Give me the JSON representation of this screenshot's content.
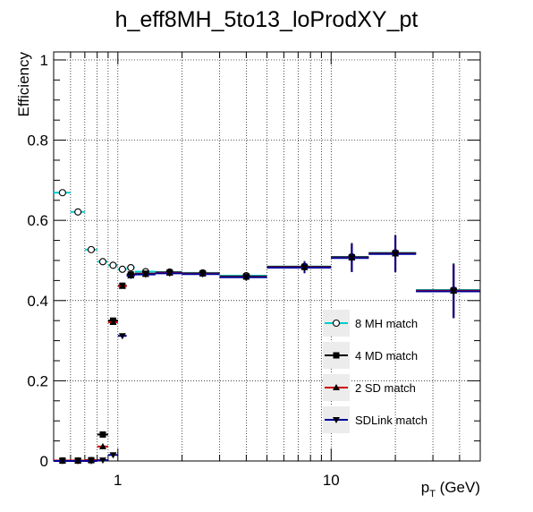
{
  "chart_data": {
    "type": "scatter",
    "title": "h_eff8MH_5to13_loProdXY_pt",
    "xlabel_main": "p",
    "xlabel_sub": "T",
    "xlabel_unit": " (GeV)",
    "ylabel": "Efficiency",
    "x_scale": "log",
    "xlim": [
      0.5,
      50
    ],
    "ylim": [
      0,
      1.02
    ],
    "x_ticklabels": [
      {
        "value": 1,
        "label": "1"
      },
      {
        "value": 10,
        "label": "10"
      }
    ],
    "y_ticklabels": [
      {
        "value": 0,
        "label": "0"
      },
      {
        "value": 0.2,
        "label": "0.2"
      },
      {
        "value": 0.4,
        "label": "0.4"
      },
      {
        "value": 0.6,
        "label": "0.6"
      },
      {
        "value": 0.8,
        "label": "0.8"
      },
      {
        "value": 1,
        "label": "1"
      }
    ],
    "grid": true,
    "legend_position": "right-center",
    "series": [
      {
        "name": "8 MH match",
        "color": "#00cccc",
        "marker": "open-circle",
        "points": [
          {
            "x": 0.55,
            "xerr": 0.05,
            "y": 0.669,
            "yerr": 0.004
          },
          {
            "x": 0.65,
            "xerr": 0.05,
            "y": 0.621,
            "yerr": 0.004
          },
          {
            "x": 0.75,
            "xerr": 0.05,
            "y": 0.527,
            "yerr": 0.004
          },
          {
            "x": 0.85,
            "xerr": 0.05,
            "y": 0.497,
            "yerr": 0.004
          },
          {
            "x": 0.95,
            "xerr": 0.05,
            "y": 0.488,
            "yerr": 0.004
          },
          {
            "x": 1.05,
            "xerr": 0.05,
            "y": 0.478,
            "yerr": 0.004
          },
          {
            "x": 1.15,
            "xerr": 0.05,
            "y": 0.482,
            "yerr": 0.004
          },
          {
            "x": 1.35,
            "xerr": 0.15,
            "y": 0.472,
            "yerr": 0.004
          },
          {
            "x": 1.75,
            "xerr": 0.25,
            "y": 0.471,
            "yerr": 0.004
          },
          {
            "x": 2.5,
            "xerr": 0.5,
            "y": 0.469,
            "yerr": 0.005
          },
          {
            "x": 4.0,
            "xerr": 1.0,
            "y": 0.462,
            "yerr": 0.008
          },
          {
            "x": 7.5,
            "xerr": 2.5,
            "y": 0.485,
            "yerr": 0.014
          },
          {
            "x": 12.5,
            "xerr": 2.5,
            "y": 0.509,
            "yerr": 0.035
          },
          {
            "x": 20.0,
            "xerr": 5.0,
            "y": 0.519,
            "yerr": 0.045
          },
          {
            "x": 37.5,
            "xerr": 12.5,
            "y": 0.426,
            "yerr": 0.067
          }
        ]
      },
      {
        "name": "4 MD match",
        "color": "#000000",
        "marker": "filled-square",
        "points": [
          {
            "x": 0.55,
            "xerr": 0.05,
            "y": 0.001,
            "yerr": 0.001
          },
          {
            "x": 0.65,
            "xerr": 0.05,
            "y": 0.001,
            "yerr": 0.001
          },
          {
            "x": 0.75,
            "xerr": 0.05,
            "y": 0.002,
            "yerr": 0.001
          },
          {
            "x": 0.85,
            "xerr": 0.05,
            "y": 0.066,
            "yerr": 0.003
          },
          {
            "x": 0.95,
            "xerr": 0.05,
            "y": 0.35,
            "yerr": 0.004
          },
          {
            "x": 1.05,
            "xerr": 0.05,
            "y": 0.437,
            "yerr": 0.004
          },
          {
            "x": 1.15,
            "xerr": 0.05,
            "y": 0.465,
            "yerr": 0.004
          },
          {
            "x": 1.35,
            "xerr": 0.15,
            "y": 0.467,
            "yerr": 0.004
          },
          {
            "x": 1.75,
            "xerr": 0.25,
            "y": 0.47,
            "yerr": 0.004
          },
          {
            "x": 2.5,
            "xerr": 0.5,
            "y": 0.468,
            "yerr": 0.005
          },
          {
            "x": 4.0,
            "xerr": 1.0,
            "y": 0.46,
            "yerr": 0.008
          },
          {
            "x": 7.5,
            "xerr": 2.5,
            "y": 0.484,
            "yerr": 0.014
          },
          {
            "x": 12.5,
            "xerr": 2.5,
            "y": 0.508,
            "yerr": 0.035
          },
          {
            "x": 20.0,
            "xerr": 5.0,
            "y": 0.518,
            "yerr": 0.045
          },
          {
            "x": 37.5,
            "xerr": 12.5,
            "y": 0.425,
            "yerr": 0.067
          }
        ]
      },
      {
        "name": "2 SD match",
        "color": "#cc0000",
        "marker": "filled-triangle-up",
        "points": [
          {
            "x": 0.55,
            "xerr": 0.05,
            "y": 0.001,
            "yerr": 0.001
          },
          {
            "x": 0.65,
            "xerr": 0.05,
            "y": 0.001,
            "yerr": 0.001
          },
          {
            "x": 0.75,
            "xerr": 0.05,
            "y": 0.002,
            "yerr": 0.001
          },
          {
            "x": 0.85,
            "xerr": 0.05,
            "y": 0.036,
            "yerr": 0.003
          },
          {
            "x": 0.95,
            "xerr": 0.05,
            "y": 0.346,
            "yerr": 0.004
          },
          {
            "x": 1.05,
            "xerr": 0.05,
            "y": 0.436,
            "yerr": 0.004
          },
          {
            "x": 1.15,
            "xerr": 0.05,
            "y": 0.462,
            "yerr": 0.004
          },
          {
            "x": 1.35,
            "xerr": 0.15,
            "y": 0.466,
            "yerr": 0.004
          },
          {
            "x": 1.75,
            "xerr": 0.25,
            "y": 0.469,
            "yerr": 0.004
          },
          {
            "x": 2.5,
            "xerr": 0.5,
            "y": 0.467,
            "yerr": 0.005
          },
          {
            "x": 4.0,
            "xerr": 1.0,
            "y": 0.459,
            "yerr": 0.008
          },
          {
            "x": 7.5,
            "xerr": 2.5,
            "y": 0.483,
            "yerr": 0.014
          },
          {
            "x": 12.5,
            "xerr": 2.5,
            "y": 0.507,
            "yerr": 0.035
          },
          {
            "x": 20.0,
            "xerr": 5.0,
            "y": 0.517,
            "yerr": 0.045
          },
          {
            "x": 37.5,
            "xerr": 12.5,
            "y": 0.424,
            "yerr": 0.067
          }
        ]
      },
      {
        "name": "SDLink match",
        "color": "#000099",
        "marker": "filled-triangle-down",
        "points": [
          {
            "x": 0.55,
            "xerr": 0.05,
            "y": 0.0,
            "yerr": 0.001
          },
          {
            "x": 0.65,
            "xerr": 0.05,
            "y": 0.0,
            "yerr": 0.001
          },
          {
            "x": 0.75,
            "xerr": 0.05,
            "y": 0.0,
            "yerr": 0.001
          },
          {
            "x": 0.85,
            "xerr": 0.05,
            "y": 0.002,
            "yerr": 0.001
          },
          {
            "x": 0.95,
            "xerr": 0.05,
            "y": 0.015,
            "yerr": 0.002
          },
          {
            "x": 1.05,
            "xerr": 0.05,
            "y": 0.312,
            "yerr": 0.004
          },
          {
            "x": 1.15,
            "xerr": 0.05,
            "y": 0.462,
            "yerr": 0.004
          },
          {
            "x": 1.35,
            "xerr": 0.15,
            "y": 0.465,
            "yerr": 0.004
          },
          {
            "x": 1.75,
            "xerr": 0.25,
            "y": 0.468,
            "yerr": 0.004
          },
          {
            "x": 2.5,
            "xerr": 0.5,
            "y": 0.466,
            "yerr": 0.005
          },
          {
            "x": 4.0,
            "xerr": 1.0,
            "y": 0.458,
            "yerr": 0.008
          },
          {
            "x": 7.5,
            "xerr": 2.5,
            "y": 0.482,
            "yerr": 0.014
          },
          {
            "x": 12.5,
            "xerr": 2.5,
            "y": 0.506,
            "yerr": 0.035
          },
          {
            "x": 20.0,
            "xerr": 5.0,
            "y": 0.516,
            "yerr": 0.045
          },
          {
            "x": 37.5,
            "xerr": 12.5,
            "y": 0.423,
            "yerr": 0.067
          }
        ]
      }
    ]
  }
}
